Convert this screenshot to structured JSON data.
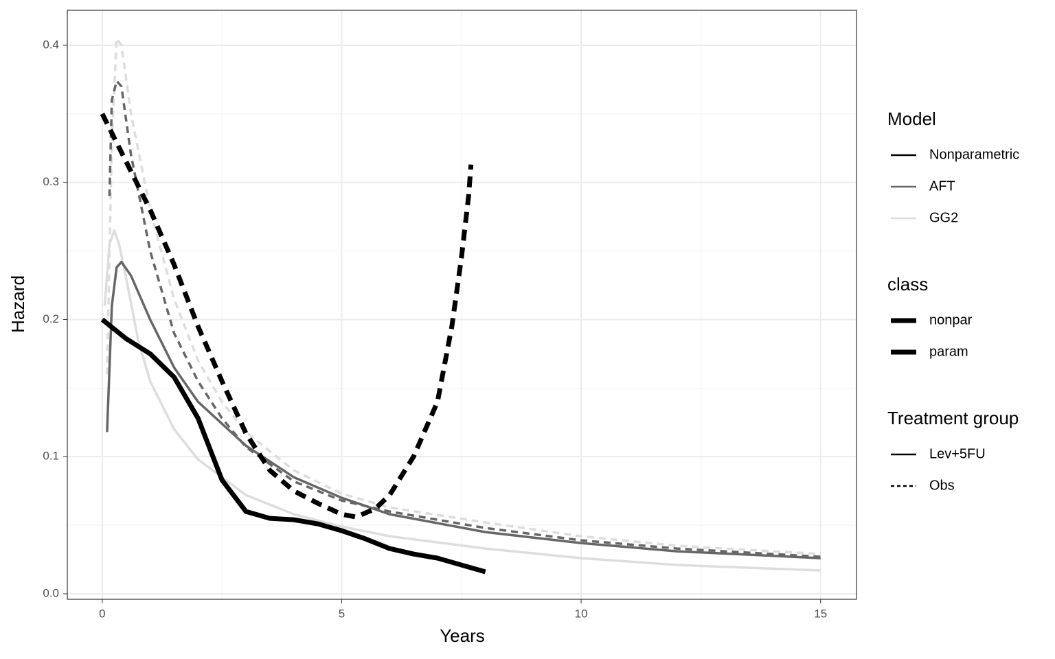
{
  "chart_data": {
    "type": "line",
    "x_label": "Years",
    "y_label": "Hazard",
    "xlim": [
      -0.73,
      15.75
    ],
    "ylim": [
      -0.004,
      0.4255
    ],
    "xticks": [
      0,
      5,
      10,
      15
    ],
    "yticks": [
      {
        "value": 0,
        "label": "0.0"
      },
      0.1,
      0.2,
      0.3,
      0.4
    ],
    "xminorticks": [
      2.5,
      7.5,
      12.5
    ],
    "yminorticks": [
      0.05,
      0.15,
      0.25,
      0.35
    ],
    "grid": true,
    "series": [
      {
        "color": "#dddddd",
        "dashed": false,
        "thick": false,
        "x": [
          0.05,
          0.15,
          0.25,
          0.35,
          0.5,
          0.75,
          1,
          1.5,
          2,
          3,
          4,
          5,
          6,
          8,
          10,
          12,
          15
        ],
        "values": [
          0.21,
          0.255,
          0.265,
          0.255,
          0.23,
          0.185,
          0.155,
          0.12,
          0.098,
          0.072,
          0.058,
          0.049,
          0.042,
          0.033,
          0.026,
          0.021,
          0.017
        ]
      },
      {
        "color": "#dddddd",
        "dashed": true,
        "thick": false,
        "x": [
          0.1,
          0.2,
          0.3,
          0.4,
          0.6,
          1,
          1.5,
          2,
          2.5,
          3,
          4,
          5,
          6,
          8,
          10,
          12,
          15
        ],
        "values": [
          0.16,
          0.33,
          0.405,
          0.4,
          0.35,
          0.28,
          0.215,
          0.17,
          0.14,
          0.118,
          0.09,
          0.073,
          0.063,
          0.052,
          0.042,
          0.035,
          0.029
        ]
      },
      {
        "color": "#666666",
        "dashed": false,
        "thick": false,
        "x": [
          0.1,
          0.2,
          0.3,
          0.4,
          0.6,
          1,
          1.5,
          2,
          3,
          4,
          5,
          6,
          8,
          10,
          12,
          15
        ],
        "values": [
          0.118,
          0.21,
          0.238,
          0.242,
          0.232,
          0.2,
          0.165,
          0.14,
          0.108,
          0.085,
          0.07,
          0.058,
          0.045,
          0.037,
          0.031,
          0.026
        ]
      },
      {
        "color": "#666666",
        "dashed": true,
        "thick": false,
        "x": [
          0.15,
          0.2,
          0.3,
          0.4,
          0.6,
          1,
          1.5,
          2,
          2.5,
          3,
          4,
          5,
          6,
          8,
          10,
          12,
          15
        ],
        "values": [
          0.29,
          0.36,
          0.374,
          0.37,
          0.32,
          0.25,
          0.19,
          0.155,
          0.128,
          0.107,
          0.082,
          0.068,
          0.06,
          0.048,
          0.039,
          0.033,
          0.027
        ]
      },
      {
        "color": "#000000",
        "dashed": false,
        "thick": true,
        "x": [
          0,
          0.5,
          1,
          1.5,
          2,
          2.5,
          3,
          3.5,
          4,
          4.5,
          5,
          5.5,
          6,
          6.5,
          7,
          7.5,
          8
        ],
        "values": [
          0.2,
          0.186,
          0.175,
          0.158,
          0.128,
          0.083,
          0.06,
          0.055,
          0.054,
          0.051,
          0.046,
          0.04,
          0.033,
          0.029,
          0.026,
          0.021,
          0.016
        ]
      },
      {
        "color": "#000000",
        "dashed": true,
        "thick": true,
        "x": [
          0,
          0.5,
          1,
          1.5,
          2,
          2.5,
          3,
          3.5,
          4,
          4.5,
          5,
          5.3,
          5.7,
          6,
          6.5,
          7,
          7.3,
          7.5,
          7.65,
          7.7
        ],
        "values": [
          0.35,
          0.315,
          0.28,
          0.24,
          0.195,
          0.155,
          0.117,
          0.09,
          0.075,
          0.066,
          0.058,
          0.056,
          0.062,
          0.072,
          0.1,
          0.14,
          0.195,
          0.245,
          0.29,
          0.313
        ]
      }
    ],
    "legends": [
      {
        "title": "Model",
        "entries": [
          {
            "label": "Nonparametric",
            "color": "#000000",
            "dashed": false,
            "thick": false
          },
          {
            "label": "AFT",
            "color": "#666666",
            "dashed": false,
            "thick": false
          },
          {
            "label": "GG2",
            "color": "#dddddd",
            "dashed": false,
            "thick": false
          }
        ]
      },
      {
        "title": "class",
        "entries": [
          {
            "label": "nonpar",
            "color": "#000000",
            "dashed": false,
            "thick": true
          },
          {
            "label": "param",
            "color": "#000000",
            "dashed": false,
            "thick": true
          }
        ]
      },
      {
        "title": "Treatment group",
        "entries": [
          {
            "label": "Lev+5FU",
            "color": "#000000",
            "dashed": false,
            "thick": false
          },
          {
            "label": "Obs",
            "color": "#000000",
            "dashed": true,
            "thick": false
          }
        ]
      }
    ]
  }
}
